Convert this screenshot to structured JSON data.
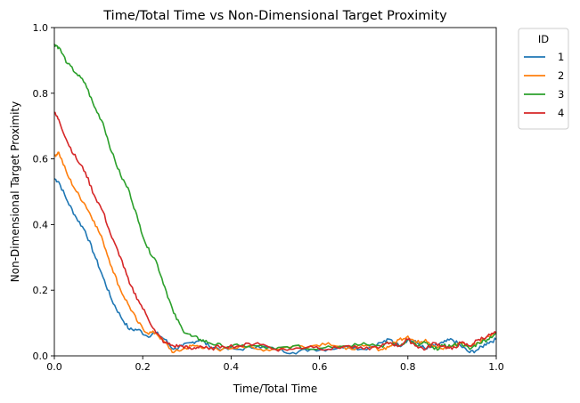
{
  "chart_data": {
    "type": "line",
    "title": "Time/Total Time vs Non-Dimensional Target Proximity",
    "xlabel": "Time/Total Time",
    "ylabel": "Non-Dimensional Target Proximity",
    "xlim": [
      0,
      1
    ],
    "ylim": [
      0,
      1
    ],
    "xticks": [
      "0.0",
      "0.2",
      "0.4",
      "0.6",
      "0.8",
      "1.0"
    ],
    "yticks": [
      "0.0",
      "0.2",
      "0.4",
      "0.6",
      "0.8",
      "1.0"
    ],
    "grid": false,
    "legend": {
      "title": "ID",
      "placement": "outside-top-right"
    },
    "series": [
      {
        "name": "1",
        "color": "#1f77b4",
        "x": [
          0,
          0.01,
          0.03,
          0.05,
          0.07,
          0.09,
          0.11,
          0.13,
          0.15,
          0.17,
          0.19,
          0.21,
          0.23,
          0.25,
          0.27,
          0.29,
          0.31,
          0.33,
          0.35,
          0.38,
          0.42,
          0.46,
          0.5,
          0.54,
          0.58,
          0.62,
          0.66,
          0.7,
          0.74,
          0.76,
          0.78,
          0.8,
          0.82,
          0.84,
          0.86,
          0.88,
          0.9,
          0.92,
          0.94,
          0.96,
          0.98,
          1.0
        ],
        "y": [
          0.54,
          0.53,
          0.47,
          0.42,
          0.38,
          0.31,
          0.24,
          0.17,
          0.12,
          0.08,
          0.08,
          0.06,
          0.07,
          0.05,
          0.02,
          0.03,
          0.04,
          0.05,
          0.03,
          0.02,
          0.02,
          0.03,
          0.02,
          0.01,
          0.02,
          0.02,
          0.03,
          0.02,
          0.04,
          0.05,
          0.03,
          0.05,
          0.04,
          0.02,
          0.03,
          0.04,
          0.05,
          0.03,
          0.01,
          0.02,
          0.04,
          0.05
        ]
      },
      {
        "name": "2",
        "color": "#ff7f0e",
        "x": [
          0,
          0.01,
          0.03,
          0.05,
          0.07,
          0.09,
          0.11,
          0.13,
          0.15,
          0.17,
          0.19,
          0.21,
          0.23,
          0.25,
          0.27,
          0.29,
          0.31,
          0.33,
          0.35,
          0.38,
          0.42,
          0.46,
          0.5,
          0.54,
          0.58,
          0.62,
          0.66,
          0.7,
          0.74,
          0.76,
          0.78,
          0.8,
          0.82,
          0.84,
          0.86,
          0.88,
          0.9,
          0.92,
          0.94,
          0.96,
          0.98,
          1.0
        ],
        "y": [
          0.61,
          0.62,
          0.55,
          0.5,
          0.46,
          0.41,
          0.35,
          0.27,
          0.2,
          0.15,
          0.1,
          0.07,
          0.07,
          0.04,
          0.01,
          0.02,
          0.03,
          0.03,
          0.02,
          0.02,
          0.03,
          0.02,
          0.02,
          0.03,
          0.03,
          0.04,
          0.02,
          0.03,
          0.02,
          0.03,
          0.05,
          0.06,
          0.04,
          0.05,
          0.03,
          0.02,
          0.03,
          0.04,
          0.03,
          0.04,
          0.06,
          0.07
        ]
      },
      {
        "name": "3",
        "color": "#2ca02c",
        "x": [
          0,
          0.01,
          0.03,
          0.05,
          0.07,
          0.09,
          0.11,
          0.13,
          0.15,
          0.17,
          0.19,
          0.21,
          0.23,
          0.25,
          0.27,
          0.29,
          0.31,
          0.33,
          0.35,
          0.38,
          0.42,
          0.46,
          0.5,
          0.54,
          0.58,
          0.62,
          0.66,
          0.7,
          0.74,
          0.76,
          0.78,
          0.8,
          0.82,
          0.84,
          0.86,
          0.88,
          0.9,
          0.92,
          0.94,
          0.96,
          0.98,
          1.0
        ],
        "y": [
          0.95,
          0.94,
          0.89,
          0.86,
          0.83,
          0.76,
          0.71,
          0.62,
          0.55,
          0.5,
          0.41,
          0.33,
          0.29,
          0.21,
          0.13,
          0.08,
          0.06,
          0.05,
          0.04,
          0.03,
          0.03,
          0.03,
          0.02,
          0.03,
          0.02,
          0.03,
          0.03,
          0.04,
          0.03,
          0.04,
          0.03,
          0.05,
          0.03,
          0.04,
          0.02,
          0.03,
          0.03,
          0.04,
          0.02,
          0.04,
          0.05,
          0.07
        ]
      },
      {
        "name": "4",
        "color": "#d62728",
        "x": [
          0,
          0.01,
          0.03,
          0.05,
          0.07,
          0.09,
          0.11,
          0.13,
          0.15,
          0.17,
          0.19,
          0.21,
          0.23,
          0.25,
          0.27,
          0.29,
          0.31,
          0.33,
          0.35,
          0.38,
          0.42,
          0.46,
          0.5,
          0.54,
          0.58,
          0.62,
          0.66,
          0.7,
          0.74,
          0.76,
          0.78,
          0.8,
          0.82,
          0.84,
          0.86,
          0.88,
          0.9,
          0.92,
          0.94,
          0.96,
          0.98,
          1.0
        ],
        "y": [
          0.74,
          0.72,
          0.65,
          0.6,
          0.56,
          0.49,
          0.44,
          0.36,
          0.3,
          0.22,
          0.17,
          0.12,
          0.07,
          0.04,
          0.03,
          0.03,
          0.02,
          0.03,
          0.02,
          0.03,
          0.03,
          0.04,
          0.02,
          0.02,
          0.03,
          0.02,
          0.03,
          0.02,
          0.03,
          0.04,
          0.03,
          0.05,
          0.03,
          0.02,
          0.04,
          0.03,
          0.02,
          0.04,
          0.03,
          0.05,
          0.06,
          0.07
        ]
      }
    ]
  }
}
